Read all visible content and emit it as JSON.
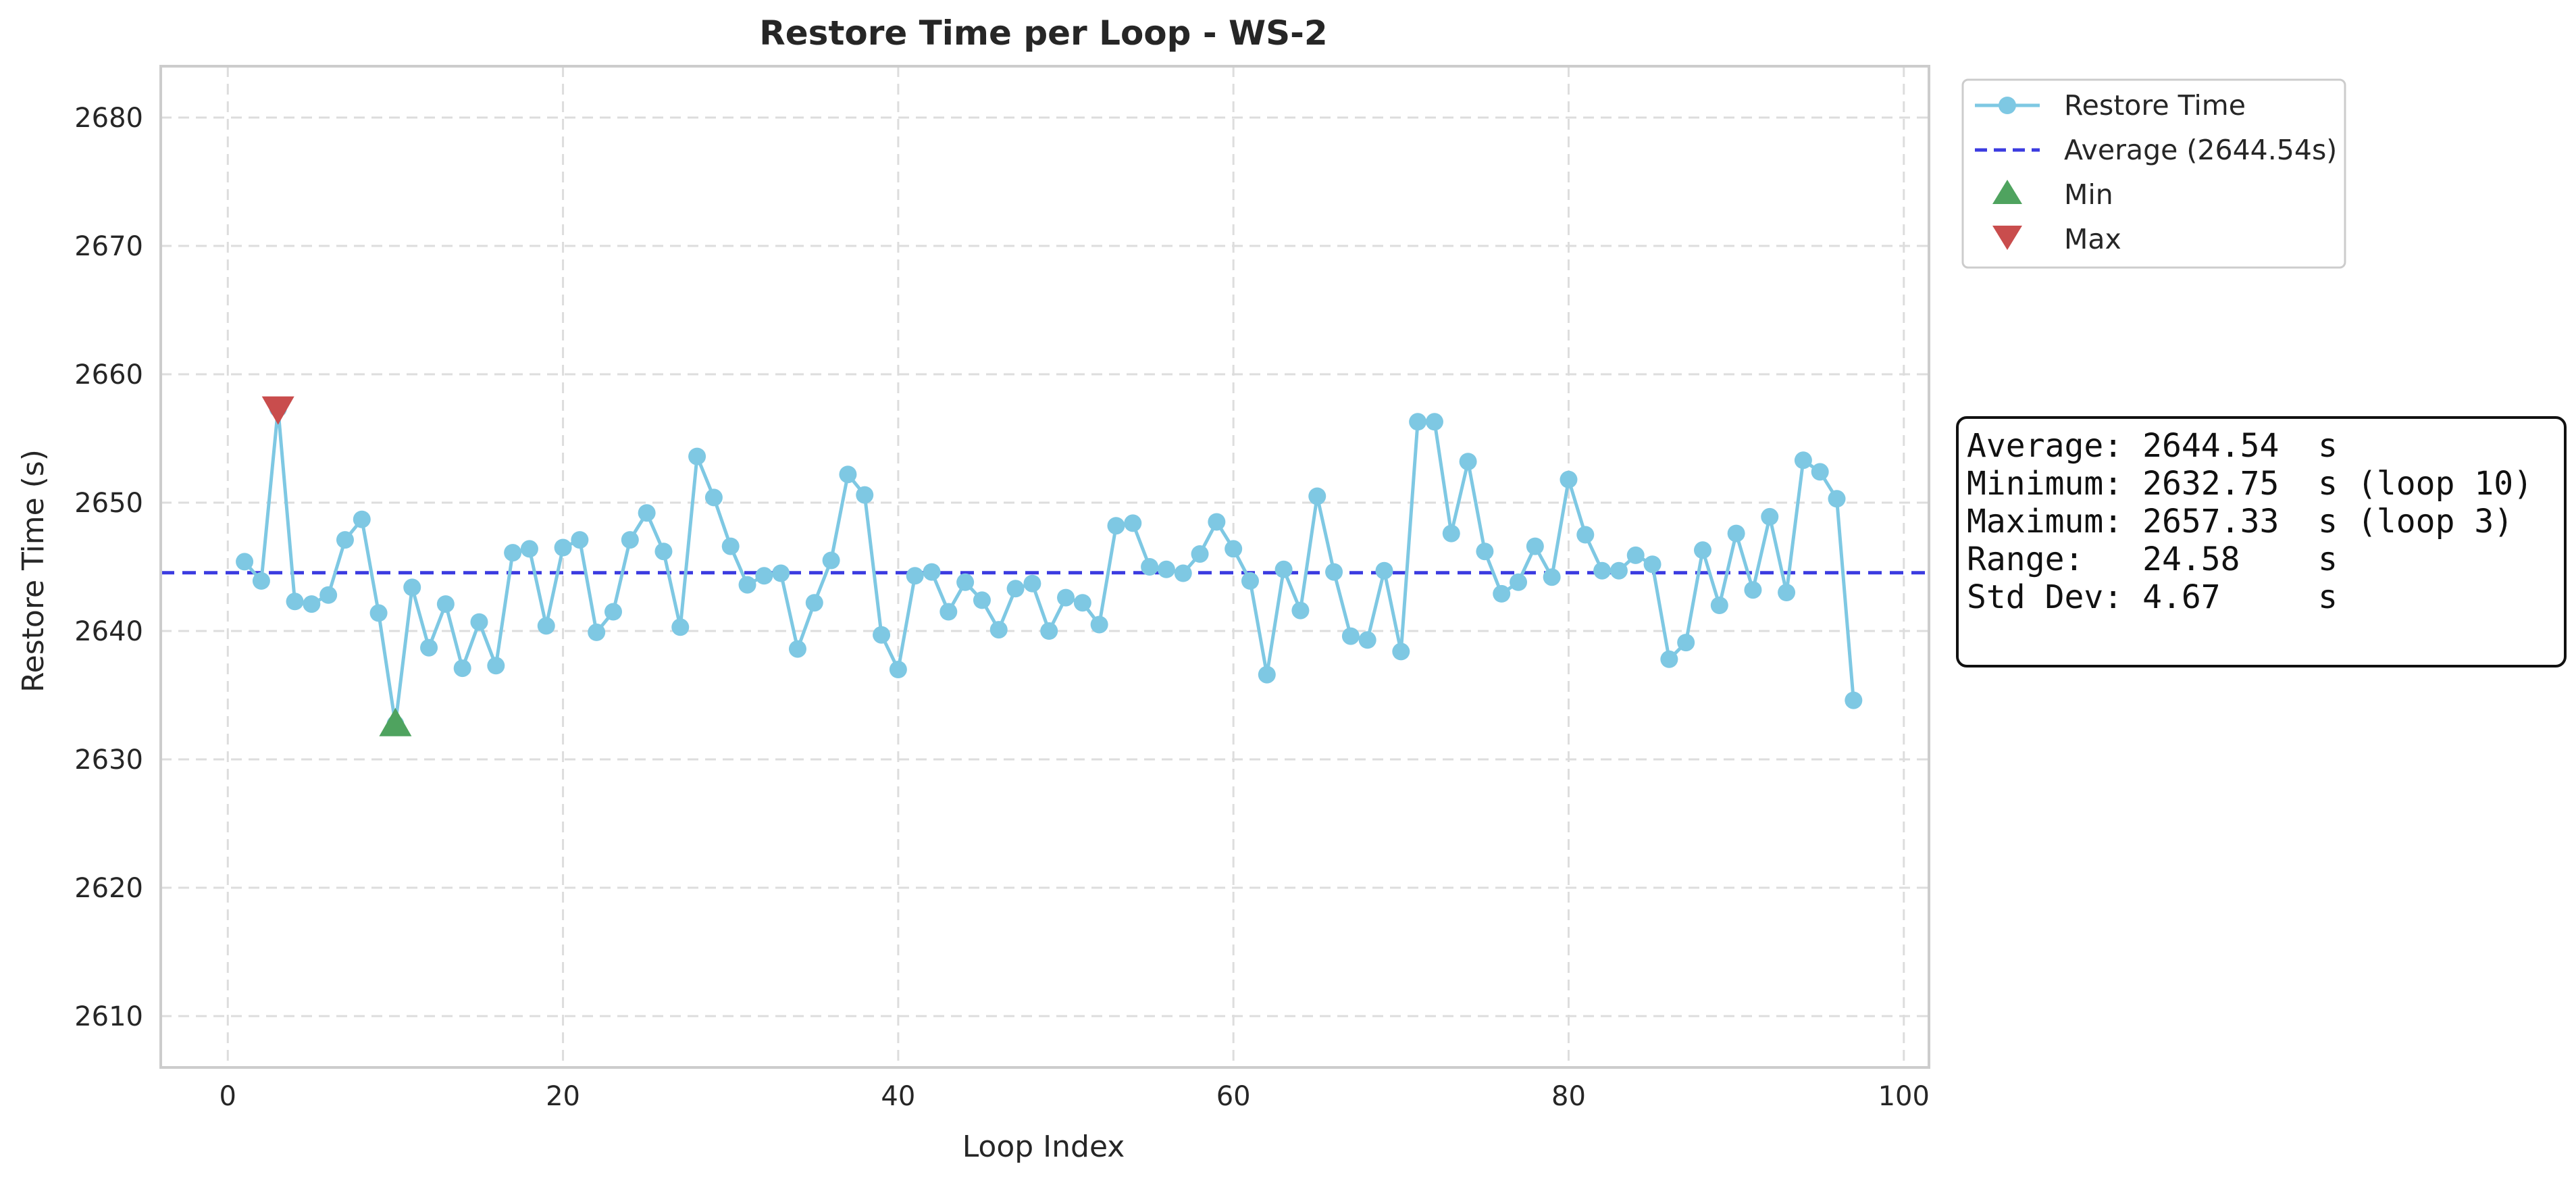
{
  "chart_data": {
    "type": "line",
    "title": "Restore Time per Loop - WS-2",
    "xlabel": "Loop Index",
    "ylabel": "Restore Time (s)",
    "xlim": [
      -4,
      101.5
    ],
    "ylim": [
      2606,
      2684
    ],
    "xticks": [
      0,
      20,
      40,
      60,
      80,
      100
    ],
    "yticks": [
      2610,
      2620,
      2630,
      2640,
      2650,
      2660,
      2670,
      2680
    ],
    "grid": true,
    "legend_placement": "outside-top-right",
    "colors": {
      "series": "#7ec8e3",
      "average": "#3b3be0",
      "min": "#4fa35f",
      "max": "#c94d4d"
    },
    "legend": [
      {
        "label": "Restore Time",
        "kind": "line-marker"
      },
      {
        "label": "Average (2644.54s)",
        "kind": "dashed"
      },
      {
        "label": "Min",
        "kind": "triangle-up"
      },
      {
        "label": "Max",
        "kind": "triangle-down"
      }
    ],
    "series": [
      {
        "name": "Restore Time",
        "x_start": 1,
        "values": [
          2645.4,
          2643.9,
          2657.33,
          2642.3,
          2642.1,
          2642.8,
          2647.1,
          2648.7,
          2641.4,
          2632.75,
          2643.4,
          2638.7,
          2642.1,
          2637.1,
          2640.7,
          2637.3,
          2646.1,
          2646.4,
          2640.4,
          2646.5,
          2647.1,
          2639.9,
          2641.5,
          2647.1,
          2649.2,
          2646.2,
          2640.3,
          2653.6,
          2650.4,
          2646.6,
          2643.6,
          2644.3,
          2644.5,
          2638.6,
          2642.2,
          2645.5,
          2652.2,
          2650.6,
          2639.7,
          2637.0,
          2644.3,
          2644.6,
          2641.5,
          2643.8,
          2642.4,
          2640.1,
          2643.3,
          2643.7,
          2640.0,
          2642.6,
          2642.2,
          2640.5,
          2648.2,
          2648.4,
          2645.0,
          2644.8,
          2644.5,
          2646.0,
          2648.5,
          2646.4,
          2643.9,
          2636.6,
          2644.8,
          2641.6,
          2650.5,
          2644.6,
          2639.6,
          2639.3,
          2644.7,
          2638.4,
          2656.3,
          2656.3,
          2647.6,
          2653.2,
          2646.2,
          2642.9,
          2643.8,
          2646.6,
          2644.2,
          2651.8,
          2647.5,
          2644.7,
          2644.7,
          2645.9,
          2645.2,
          2637.8,
          2639.1,
          2646.3,
          2642.0,
          2647.6,
          2643.2,
          2648.9,
          2643.0,
          2653.3,
          2652.4,
          2650.3,
          2634.6
        ]
      }
    ],
    "average": 2644.54,
    "min": {
      "loop": 10,
      "value": 2632.75
    },
    "max": {
      "loop": 3,
      "value": 2657.33
    },
    "stats_box": [
      "Average: 2644.54  s",
      "Minimum: 2632.75  s (loop 10)",
      "Maximum: 2657.33  s (loop 3)",
      "Range:   24.58    s",
      "Std Dev: 4.67     s"
    ]
  }
}
